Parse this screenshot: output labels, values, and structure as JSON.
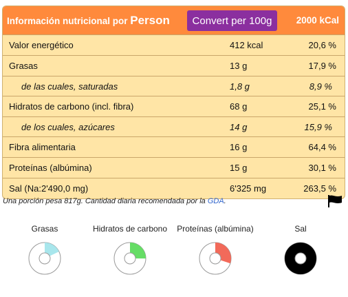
{
  "header": {
    "title_prefix": "Información nutricional por ",
    "title_person": "Person",
    "convert_button": "Convert per 100g",
    "kcal_reference": "2000 kCal"
  },
  "rows": [
    {
      "name": "Valor energético",
      "amount": "412 kcal",
      "pct": "20,6 %"
    },
    {
      "name": "Grasas",
      "amount": "13 g",
      "pct": "17,9 %"
    },
    {
      "name": "de las cuales, saturadas",
      "amount": "1,8 g",
      "pct": "8,9 %"
    },
    {
      "name": "Hidratos de carbono (incl. fibra)",
      "amount": "68 g",
      "pct": "25,1 %"
    },
    {
      "name": "de los cuales, azúcares",
      "amount": "14 g",
      "pct": "15,9 %"
    },
    {
      "name": "Fibra alimentaria",
      "amount": "16 g",
      "pct": "64,4 %"
    },
    {
      "name": "Proteínas (albúmina)",
      "amount": "15 g",
      "pct": "30,1 %"
    },
    {
      "name": "Sal (Na:2'490,0 mg)",
      "amount": "6'325 mg",
      "pct": "263,5 %"
    }
  ],
  "footnote": {
    "text": "Una porción pesa 817g.   Cantidad diaria recomendada por la ",
    "link": "GDA",
    "end": "."
  },
  "gauges": [
    {
      "label": "Grasas",
      "fraction": 0.179,
      "color": "#a8e6ec"
    },
    {
      "label": "Hidratos de carbono",
      "fraction": 0.251,
      "color": "#66dd66"
    },
    {
      "label": "Proteínas (albúmina)",
      "fraction": 0.301,
      "color": "#f26a5a"
    },
    {
      "label": "Sal",
      "fraction": 1.0,
      "color": "#000000"
    }
  ]
}
